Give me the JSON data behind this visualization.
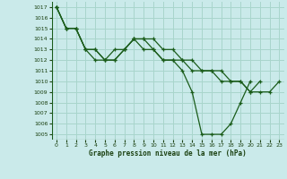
{
  "title": "Graphe pression niveau de la mer (hPa)",
  "background_color": "#caeaea",
  "grid_color": "#a8d5cc",
  "line_color": "#1a5c1a",
  "text_color": "#1a4010",
  "xlim": [
    -0.5,
    23.5
  ],
  "ylim": [
    1004.5,
    1017.5
  ],
  "xticks": [
    0,
    1,
    2,
    3,
    4,
    5,
    6,
    7,
    8,
    9,
    10,
    11,
    12,
    13,
    14,
    15,
    16,
    17,
    18,
    19,
    20,
    21,
    22,
    23
  ],
  "yticks": [
    1005,
    1006,
    1007,
    1008,
    1009,
    1010,
    1011,
    1012,
    1013,
    1014,
    1015,
    1016,
    1017
  ],
  "series": [
    {
      "x": [
        0,
        1,
        2,
        3,
        4,
        5,
        6,
        7,
        8,
        9,
        10,
        11,
        12,
        13,
        14,
        15,
        16,
        17,
        18,
        19,
        20,
        21
      ],
      "y": [
        1017,
        1015,
        1015,
        1013,
        1013,
        1012,
        1013,
        1013,
        1014,
        1014,
        1014,
        1013,
        1013,
        1012,
        1012,
        1011,
        1011,
        1011,
        1010,
        1010,
        1009,
        1010
      ]
    },
    {
      "x": [
        0,
        1,
        2,
        3,
        4,
        5,
        6,
        7,
        8,
        9,
        10,
        11,
        12,
        13,
        14,
        15,
        16,
        17,
        18,
        19,
        20,
        21,
        22,
        23
      ],
      "y": [
        1017,
        1015,
        1015,
        1013,
        1013,
        1012,
        1012,
        1013,
        1014,
        1013,
        1013,
        1012,
        1012,
        1012,
        1011,
        1011,
        1011,
        1010,
        1010,
        1010,
        1009,
        1009,
        1009,
        1010
      ]
    },
    {
      "x": [
        0,
        1,
        2,
        3,
        4,
        5,
        6,
        7,
        8,
        9,
        10,
        11,
        12,
        13,
        14,
        15,
        16,
        17,
        18,
        19,
        20
      ],
      "y": [
        1017,
        1015,
        1015,
        1013,
        1012,
        1012,
        1012,
        1013,
        1014,
        1014,
        1013,
        1012,
        1012,
        1011,
        1009,
        1005,
        1005,
        1005,
        1006,
        1008,
        1010
      ]
    }
  ]
}
